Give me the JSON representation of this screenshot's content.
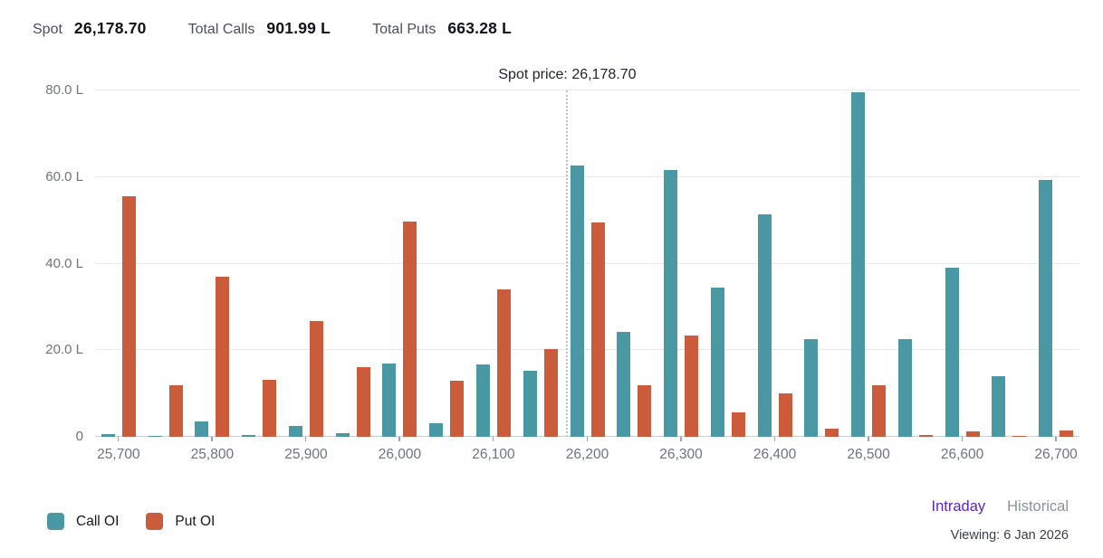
{
  "header": {
    "spot_label": "Spot",
    "spot_value": "26,178.70",
    "total_calls_label": "Total Calls",
    "total_calls_value": "901.99 L",
    "total_puts_label": "Total Puts",
    "total_puts_value": "663.28 L"
  },
  "chart_data": {
    "type": "bar",
    "title": "Spot price: 26,178.70",
    "spot_price": 26178.7,
    "unit": "L",
    "categories": [
      25700,
      25750,
      25800,
      25850,
      25900,
      25950,
      26000,
      26050,
      26100,
      26150,
      26200,
      26250,
      26300,
      26350,
      26400,
      26450,
      26500,
      26550,
      26600,
      26650,
      26700
    ],
    "x_tick_labels": [
      "25,700",
      "25,800",
      "25,900",
      "26,000",
      "26,100",
      "26,200",
      "26,300",
      "26,400",
      "26,500",
      "26,600",
      "26,700"
    ],
    "x_label_every": 2,
    "series": [
      {
        "name": "Call OI",
        "color": "#4998a4",
        "values": [
          0.6,
          0.2,
          3.5,
          0.5,
          2.5,
          0.9,
          17.0,
          3.1,
          16.8,
          15.3,
          62.7,
          24.2,
          61.6,
          34.5,
          51.3,
          22.5,
          79.5,
          22.5,
          39.0,
          13.9,
          59.3
        ]
      },
      {
        "name": "Put OI",
        "color": "#cb5c3b",
        "values": [
          55.6,
          12.0,
          36.9,
          13.2,
          26.7,
          16.0,
          49.8,
          12.9,
          34.0,
          20.3,
          49.6,
          11.9,
          23.4,
          5.7,
          10.0,
          1.9,
          11.9,
          0.4,
          1.2,
          0.2,
          1.4
        ]
      }
    ],
    "xlabel": "",
    "ylabel": "",
    "ylim": [
      0,
      80
    ],
    "y_ticks": [
      "80.0 L",
      "60.0 L",
      "40.0 L",
      "20.0 L",
      "0"
    ],
    "grid": true,
    "legend_position": "bottom-left"
  },
  "footer": {
    "legend": [
      {
        "label": "Call OI",
        "color": "#4998a4"
      },
      {
        "label": "Put OI",
        "color": "#cb5c3b"
      }
    ],
    "tabs": [
      {
        "label": "Intraday",
        "active": true
      },
      {
        "label": "Historical",
        "active": false
      }
    ],
    "viewing_label": "Viewing: 6 Jan 2026",
    "active_tab_color": "#5c24c4"
  }
}
